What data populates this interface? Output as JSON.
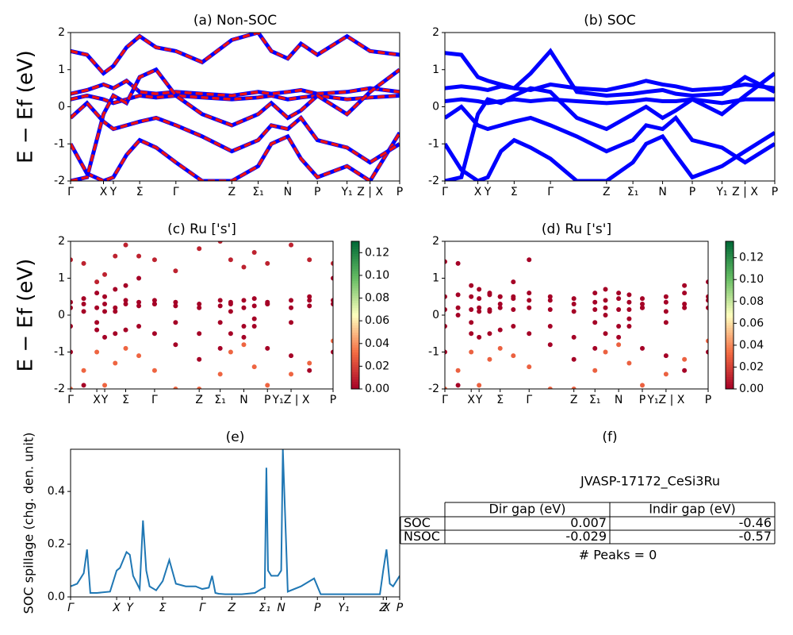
{
  "chart_data": [
    {
      "type": "bands",
      "title": "(a) Non-SOC",
      "ylabel": "E − Ef (eV)",
      "xlim": [
        0,
        100
      ],
      "ylim": [
        -2,
        2
      ],
      "yticks": [
        -2,
        -1,
        0,
        1,
        2
      ],
      "xticks": [
        {
          "value": 0,
          "label": "Γ"
        },
        {
          "value": 10,
          "label": "X"
        },
        {
          "value": 13,
          "label": "Y"
        },
        {
          "value": 21,
          "label": "Σ"
        },
        {
          "value": 32,
          "label": "Γ"
        },
        {
          "value": 49,
          "label": "Z"
        },
        {
          "value": 57,
          "label": "Σ₁"
        },
        {
          "value": 66,
          "label": "N"
        },
        {
          "value": 75,
          "label": "P"
        },
        {
          "value": 84,
          "label": "Y₁"
        },
        {
          "value": 91,
          "label": "Z | X"
        },
        {
          "value": 100,
          "label": "P"
        }
      ],
      "overlay_color": "#ee1111",
      "x": [
        0,
        5,
        10,
        13,
        17,
        21,
        26,
        32,
        40,
        49,
        57,
        61,
        66,
        70,
        75,
        84,
        91,
        100
      ],
      "series": [
        {
          "color": "#0000ff",
          "values": [
            -1.0,
            -1.8,
            -2.0,
            -1.9,
            -1.3,
            -0.9,
            -1.1,
            -1.5,
            -2.0,
            -2.0,
            -1.6,
            -1.0,
            -0.8,
            -1.4,
            -1.9,
            -1.6,
            -2.0,
            -0.7
          ]
        },
        {
          "color": "#0000ff",
          "values": [
            -0.3,
            0.1,
            -0.4,
            -0.6,
            -0.5,
            -0.4,
            -0.3,
            -0.5,
            -0.8,
            -1.2,
            -0.9,
            -0.5,
            -0.6,
            -0.3,
            -0.9,
            -1.1,
            -1.5,
            -1.0
          ]
        },
        {
          "color": "#0000ff",
          "values": [
            0.2,
            0.3,
            0.2,
            0.1,
            0.2,
            0.3,
            0.25,
            0.3,
            0.25,
            0.2,
            0.25,
            0.3,
            0.2,
            0.25,
            0.3,
            0.2,
            0.25,
            0.3
          ]
        },
        {
          "color": "#0000ff",
          "values": [
            0.35,
            0.45,
            0.6,
            0.5,
            0.7,
            0.4,
            0.35,
            0.4,
            0.35,
            0.3,
            0.4,
            0.35,
            0.4,
            0.45,
            0.35,
            0.4,
            0.5,
            0.4
          ]
        },
        {
          "color": "#0000ff",
          "values": [
            1.5,
            1.4,
            0.9,
            1.1,
            1.6,
            1.9,
            1.6,
            1.5,
            1.2,
            1.8,
            2.0,
            1.5,
            1.3,
            1.7,
            1.4,
            1.9,
            1.5,
            1.4
          ]
        },
        {
          "color": "#0000ff",
          "values": [
            -2.0,
            -1.9,
            -0.2,
            0.3,
            0.1,
            0.8,
            1.0,
            0.3,
            -0.2,
            -0.5,
            -0.2,
            0.1,
            -0.3,
            -0.1,
            0.3,
            -0.2,
            0.4,
            1.0
          ]
        }
      ]
    },
    {
      "type": "bands",
      "title": "(b) SOC",
      "xlim": [
        0,
        100
      ],
      "ylim": [
        -2,
        2
      ],
      "yticks": [
        -2,
        -1,
        0,
        1,
        2
      ],
      "xticks": [
        {
          "value": 0,
          "label": "Γ"
        },
        {
          "value": 10,
          "label": "X"
        },
        {
          "value": 13,
          "label": "Y"
        },
        {
          "value": 21,
          "label": "Σ"
        },
        {
          "value": 32,
          "label": "Γ"
        },
        {
          "value": 49,
          "label": "Z"
        },
        {
          "value": 57,
          "label": "Σ₁"
        },
        {
          "value": 66,
          "label": "N"
        },
        {
          "value": 75,
          "label": "P"
        },
        {
          "value": 84,
          "label": "Y₁"
        },
        {
          "value": 91,
          "label": "Z | X"
        },
        {
          "value": 100,
          "label": "P"
        }
      ],
      "x": [
        0,
        5,
        10,
        13,
        17,
        21,
        26,
        32,
        40,
        49,
        57,
        61,
        66,
        70,
        75,
        84,
        91,
        100
      ],
      "series": [
        {
          "color": "#0000ff",
          "values": [
            -1.0,
            -1.7,
            -2.0,
            -1.9,
            -1.2,
            -0.9,
            -1.1,
            -1.4,
            -2.0,
            -2.0,
            -1.5,
            -1.0,
            -0.8,
            -1.3,
            -1.9,
            -1.6,
            -1.2,
            -0.7
          ]
        },
        {
          "color": "#0000ff",
          "values": [
            -0.3,
            0.0,
            -0.5,
            -0.6,
            -0.5,
            -0.4,
            -0.3,
            -0.5,
            -0.8,
            -1.2,
            -0.9,
            -0.5,
            -0.6,
            -0.3,
            -0.9,
            -1.1,
            -1.5,
            -1.0
          ]
        },
        {
          "color": "#0000ff",
          "values": [
            0.15,
            0.2,
            0.15,
            0.1,
            0.15,
            0.2,
            0.15,
            0.2,
            0.15,
            0.1,
            0.15,
            0.2,
            0.15,
            0.15,
            0.2,
            0.1,
            0.2,
            0.2
          ]
        },
        {
          "color": "#0000ff",
          "values": [
            0.5,
            0.55,
            0.5,
            0.45,
            0.55,
            0.5,
            0.45,
            0.6,
            0.5,
            0.45,
            0.6,
            0.7,
            0.6,
            0.55,
            0.45,
            0.5,
            0.6,
            0.5
          ]
        },
        {
          "color": "#0000ff",
          "values": [
            1.45,
            1.4,
            0.8,
            0.7,
            0.6,
            0.5,
            0.9,
            1.5,
            0.4,
            0.3,
            0.35,
            0.4,
            0.45,
            0.35,
            0.3,
            0.35,
            0.8,
            0.4
          ]
        },
        {
          "color": "#0000ff",
          "values": [
            -2.0,
            -1.9,
            -0.2,
            0.2,
            0.1,
            0.3,
            0.5,
            0.4,
            -0.3,
            -0.6,
            -0.2,
            0.0,
            -0.3,
            -0.1,
            0.2,
            -0.2,
            0.3,
            0.9
          ]
        }
      ]
    },
    {
      "type": "band_scatter",
      "title": "(c)  Ru ['s']",
      "ylabel": "E − Ef (eV)",
      "xlim": [
        0,
        100
      ],
      "ylim": [
        -2,
        2
      ],
      "yticks": [
        -2,
        -1,
        0,
        1,
        2
      ],
      "xticks": [
        {
          "value": 0,
          "label": "Γ"
        },
        {
          "value": 10,
          "label": "X"
        },
        {
          "value": 13,
          "label": "Y"
        },
        {
          "value": 21,
          "label": "Σ"
        },
        {
          "value": 32,
          "label": "Γ"
        },
        {
          "value": 49,
          "label": "Z"
        },
        {
          "value": 57,
          "label": "Σ₁"
        },
        {
          "value": 66,
          "label": "N"
        },
        {
          "value": 75,
          "label": "P"
        },
        {
          "value": 84,
          "label": "Y₁Z | X"
        },
        {
          "value": 100,
          "label": "P"
        }
      ],
      "clim": [
        0,
        0.13
      ],
      "cticks": [
        {
          "value": 0,
          "label": "0.00"
        },
        {
          "value": 0.02,
          "label": "0.02"
        },
        {
          "value": 0.04,
          "label": "0.04"
        },
        {
          "value": 0.06,
          "label": "0.06"
        },
        {
          "value": 0.08,
          "label": "0.08"
        },
        {
          "value": 0.1,
          "label": "0.10"
        },
        {
          "value": 0.12,
          "label": "0.12"
        }
      ],
      "x": [
        0,
        5,
        10,
        13,
        17,
        21,
        26,
        32,
        40,
        49,
        57,
        61,
        66,
        70,
        75,
        84,
        91,
        100
      ],
      "series": [
        {
          "weight": 0.03,
          "values": [
            -2.0,
            -1.5,
            -1.0,
            -1.9,
            -1.3,
            -0.9,
            -1.1,
            -1.5,
            -2.0,
            -2.0,
            -1.6,
            -1.0,
            -0.8,
            -1.4,
            -1.9,
            -1.6,
            -1.3,
            -0.7
          ]
        },
        {
          "weight": 0,
          "values": [
            -0.3,
            0.1,
            -0.4,
            -0.6,
            -0.5,
            -0.4,
            -0.3,
            -0.5,
            -0.8,
            -1.2,
            -0.9,
            -0.5,
            -0.6,
            -0.3,
            -0.9,
            -1.1,
            -1.5,
            -1.0
          ]
        },
        {
          "weight": 0,
          "values": [
            0.2,
            0.3,
            0.2,
            0.1,
            0.2,
            0.3,
            0.25,
            0.3,
            0.25,
            0.2,
            0.25,
            0.3,
            0.2,
            0.25,
            0.3,
            0.2,
            0.25,
            0.3
          ]
        },
        {
          "weight": 0,
          "values": [
            0.35,
            0.45,
            0.6,
            0.5,
            0.7,
            0.4,
            0.35,
            0.4,
            0.35,
            0.3,
            0.4,
            0.35,
            0.4,
            0.45,
            0.35,
            0.4,
            0.5,
            0.4
          ]
        },
        {
          "weight": 0.01,
          "values": [
            1.5,
            1.4,
            0.9,
            1.1,
            1.6,
            1.9,
            1.6,
            1.5,
            1.2,
            1.8,
            2.0,
            1.5,
            1.3,
            1.7,
            1.4,
            1.9,
            1.5,
            1.4
          ]
        },
        {
          "weight": 0,
          "values": [
            -1.0,
            -1.9,
            -0.2,
            0.3,
            0.1,
            0.8,
            1.0,
            0.3,
            -0.2,
            -0.5,
            -0.2,
            0.1,
            -0.3,
            -0.1,
            0.3,
            -0.2,
            0.4,
            1.0
          ]
        }
      ]
    },
    {
      "type": "band_scatter",
      "title": "(d) Ru ['s']",
      "xlim": [
        0,
        100
      ],
      "ylim": [
        -2,
        2
      ],
      "yticks": [
        -2,
        -1,
        0,
        1,
        2
      ],
      "xticks": [
        {
          "value": 0,
          "label": "Γ"
        },
        {
          "value": 10,
          "label": "X"
        },
        {
          "value": 13,
          "label": "Y"
        },
        {
          "value": 21,
          "label": "Σ"
        },
        {
          "value": 32,
          "label": "Γ"
        },
        {
          "value": 49,
          "label": "Z"
        },
        {
          "value": 57,
          "label": "Σ₁"
        },
        {
          "value": 66,
          "label": "N"
        },
        {
          "value": 75,
          "label": "P"
        },
        {
          "value": 84,
          "label": "Y₁Z | X"
        },
        {
          "value": 100,
          "label": "P"
        }
      ],
      "clim": [
        0,
        0.135
      ],
      "cticks": [
        {
          "value": 0,
          "label": "0.00"
        },
        {
          "value": 0.02,
          "label": "0.02"
        },
        {
          "value": 0.04,
          "label": "0.04"
        },
        {
          "value": 0.06,
          "label": "0.06"
        },
        {
          "value": 0.08,
          "label": "0.08"
        },
        {
          "value": 0.1,
          "label": "0.10"
        },
        {
          "value": 0.12,
          "label": "0.12"
        }
      ],
      "x": [
        0,
        5,
        10,
        13,
        17,
        21,
        26,
        32,
        40,
        49,
        57,
        61,
        66,
        70,
        75,
        84,
        91,
        100
      ],
      "series": [
        {
          "weight": 0.03,
          "values": [
            -2.0,
            -1.5,
            -1.0,
            -1.9,
            -1.2,
            -0.9,
            -1.1,
            -1.4,
            -2.0,
            -2.0,
            -1.5,
            -1.0,
            -0.8,
            -1.3,
            -1.9,
            -1.6,
            -1.2,
            -0.7
          ]
        },
        {
          "weight": 0,
          "values": [
            -0.3,
            0.0,
            -0.5,
            -0.6,
            -0.5,
            -0.4,
            -0.3,
            -0.5,
            -0.8,
            -1.2,
            -0.9,
            -0.5,
            -0.6,
            -0.3,
            -0.9,
            -1.1,
            -1.5,
            -1.0
          ]
        },
        {
          "weight": 0,
          "values": [
            0.15,
            0.2,
            0.15,
            0.1,
            0.15,
            0.2,
            0.15,
            0.2,
            0.15,
            0.1,
            0.15,
            0.2,
            0.15,
            0.15,
            0.2,
            0.1,
            0.2,
            0.2
          ]
        },
        {
          "weight": 0,
          "values": [
            0.5,
            0.55,
            0.5,
            0.45,
            0.55,
            0.5,
            0.45,
            0.6,
            0.5,
            0.45,
            0.6,
            0.7,
            0.6,
            0.55,
            0.45,
            0.5,
            0.6,
            0.5
          ]
        },
        {
          "weight": 0,
          "values": [
            1.45,
            1.4,
            0.8,
            0.7,
            0.6,
            0.5,
            0.9,
            1.5,
            0.4,
            0.3,
            0.35,
            0.4,
            0.45,
            0.35,
            0.3,
            0.35,
            0.8,
            0.4
          ]
        },
        {
          "weight": 0,
          "values": [
            -1.0,
            -1.9,
            -0.2,
            0.2,
            0.1,
            0.3,
            0.5,
            0.4,
            -0.3,
            -0.6,
            -0.2,
            0.0,
            -0.3,
            -0.1,
            0.2,
            -0.2,
            0.3,
            0.9
          ]
        }
      ]
    },
    {
      "type": "line",
      "title": "(e)",
      "ylabel": "SOC spillage (chg. den. unit)",
      "color": "#1f77b4",
      "xlim": [
        0,
        100
      ],
      "ylim": [
        0,
        0.56
      ],
      "yticks": [
        {
          "value": 0,
          "label": "0.0"
        },
        {
          "value": 0.2,
          "label": "0.2"
        },
        {
          "value": 0.4,
          "label": "0.4"
        }
      ],
      "xticks": [
        {
          "value": 0,
          "label": "Γ"
        },
        {
          "value": 14,
          "label": "X"
        },
        {
          "value": 18,
          "label": "Y"
        },
        {
          "value": 28,
          "label": "Σ"
        },
        {
          "value": 40,
          "label": "Γ"
        },
        {
          "value": 49,
          "label": "Z"
        },
        {
          "value": 59,
          "label": "Σ₁"
        },
        {
          "value": 64,
          "label": "N"
        },
        {
          "value": 75,
          "label": "P"
        },
        {
          "value": 83,
          "label": "Y₁"
        },
        {
          "value": 95,
          "label": "Z"
        },
        {
          "value": 96,
          "label": "X"
        },
        {
          "value": 100,
          "label": "P"
        }
      ],
      "x": [
        0,
        2,
        4,
        5,
        6,
        7,
        8,
        12,
        14,
        15,
        16,
        17,
        18,
        19,
        21,
        22,
        23,
        24,
        26,
        28,
        30,
        32,
        35,
        38,
        40,
        42,
        43,
        44,
        45,
        47,
        52,
        56,
        58,
        59,
        59.5,
        60,
        61,
        63,
        64,
        64.5,
        66,
        70,
        74,
        76,
        86,
        94,
        95,
        96,
        97,
        98,
        100
      ],
      "values": [
        0.04,
        0.05,
        0.09,
        0.18,
        0.015,
        0.015,
        0.015,
        0.02,
        0.1,
        0.11,
        0.14,
        0.17,
        0.16,
        0.08,
        0.03,
        0.29,
        0.1,
        0.04,
        0.025,
        0.06,
        0.14,
        0.05,
        0.04,
        0.04,
        0.03,
        0.035,
        0.08,
        0.015,
        0.012,
        0.01,
        0.01,
        0.015,
        0.03,
        0.035,
        0.49,
        0.1,
        0.08,
        0.08,
        0.1,
        0.56,
        0.02,
        0.04,
        0.07,
        0.01,
        0.01,
        0.01,
        0.1,
        0.18,
        0.05,
        0.04,
        0.08
      ]
    },
    {
      "type": "table",
      "title": "(f)",
      "name": "JVASP-17172_CeSi3Ru",
      "columns": [
        "Dir gap (eV)",
        "Indir gap (eV)"
      ],
      "rows": [
        {
          "label": "SOC",
          "cells": [
            0.007,
            -0.46
          ]
        },
        {
          "label": "NSOC",
          "cells": [
            -0.029,
            -0.57
          ]
        }
      ],
      "footer": "# Peaks = 0"
    }
  ]
}
